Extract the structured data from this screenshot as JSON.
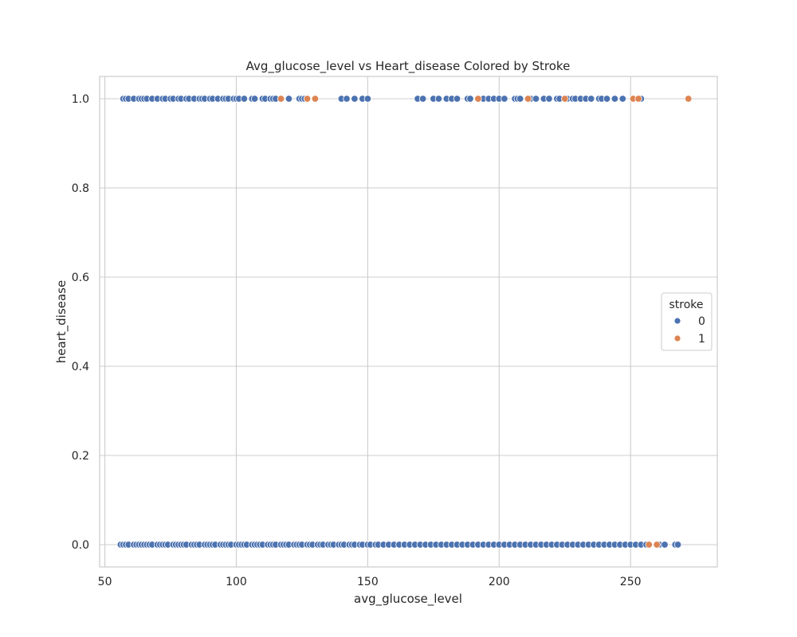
{
  "chart_data": {
    "type": "scatter",
    "title": "Avg_glucose_level vs Heart_disease Colored by Stroke",
    "xlabel": "avg_glucose_level",
    "ylabel": "heart_disease",
    "xlim": [
      48,
      283
    ],
    "ylim": [
      -0.05,
      1.05
    ],
    "xticks": [
      50,
      100,
      150,
      200,
      250
    ],
    "yticks": [
      0.0,
      0.2,
      0.4,
      0.6,
      0.8,
      1.0
    ],
    "xtick_labels": [
      "50",
      "100",
      "150",
      "200",
      "250"
    ],
    "ytick_labels": [
      "0.0",
      "0.2",
      "0.4",
      "0.6",
      "0.8",
      "1.0"
    ],
    "grid": true,
    "legend": {
      "title": "stroke",
      "placement": "center-right",
      "entries": [
        "0",
        "1"
      ]
    },
    "colors": {
      "0": "#4c72b0",
      "1": "#dd8452"
    },
    "series": [
      {
        "name": "0",
        "points": [
          [
            57,
            1
          ],
          [
            58,
            1
          ],
          [
            59,
            1
          ],
          [
            61,
            1
          ],
          [
            63,
            1
          ],
          [
            64,
            1
          ],
          [
            65,
            1
          ],
          [
            66,
            1
          ],
          [
            68,
            1
          ],
          [
            70,
            1
          ],
          [
            72,
            1
          ],
          [
            73,
            1
          ],
          [
            75,
            1
          ],
          [
            76,
            1
          ],
          [
            78,
            1
          ],
          [
            79,
            1
          ],
          [
            81,
            1
          ],
          [
            82,
            1
          ],
          [
            84,
            1
          ],
          [
            86,
            1
          ],
          [
            87,
            1
          ],
          [
            88,
            1
          ],
          [
            90,
            1
          ],
          [
            91,
            1
          ],
          [
            93,
            1
          ],
          [
            95,
            1
          ],
          [
            96,
            1
          ],
          [
            97,
            1
          ],
          [
            99,
            1
          ],
          [
            100,
            1
          ],
          [
            101,
            1
          ],
          [
            103,
            1
          ],
          [
            106,
            1
          ],
          [
            107,
            1
          ],
          [
            110,
            1
          ],
          [
            111,
            1
          ],
          [
            113,
            1
          ],
          [
            114,
            1
          ],
          [
            115,
            1
          ],
          [
            120,
            1
          ],
          [
            124,
            1
          ],
          [
            125,
            1
          ],
          [
            126,
            1
          ],
          [
            127,
            1
          ],
          [
            140,
            1
          ],
          [
            142,
            1
          ],
          [
            145,
            1
          ],
          [
            148,
            1
          ],
          [
            150,
            1
          ],
          [
            169,
            1
          ],
          [
            171,
            1
          ],
          [
            175,
            1
          ],
          [
            177,
            1
          ],
          [
            180,
            1
          ],
          [
            182,
            1
          ],
          [
            184,
            1
          ],
          [
            188,
            1
          ],
          [
            189,
            1
          ],
          [
            194,
            1
          ],
          [
            196,
            1
          ],
          [
            198,
            1
          ],
          [
            200,
            1
          ],
          [
            202,
            1
          ],
          [
            206,
            1
          ],
          [
            207,
            1
          ],
          [
            208,
            1
          ],
          [
            212,
            1
          ],
          [
            214,
            1
          ],
          [
            217,
            1
          ],
          [
            219,
            1
          ],
          [
            222,
            1
          ],
          [
            223,
            1
          ],
          [
            226,
            1
          ],
          [
            228,
            1
          ],
          [
            229,
            1
          ],
          [
            231,
            1
          ],
          [
            233,
            1
          ],
          [
            235,
            1
          ],
          [
            238,
            1
          ],
          [
            239,
            1
          ],
          [
            241,
            1
          ],
          [
            244,
            1
          ],
          [
            247,
            1
          ],
          [
            254,
            1
          ],
          [
            56,
            0
          ],
          [
            57,
            0
          ],
          [
            58,
            0
          ],
          [
            59,
            0
          ],
          [
            61,
            0
          ],
          [
            62,
            0
          ],
          [
            63,
            0
          ],
          [
            64,
            0
          ],
          [
            65,
            0
          ],
          [
            66,
            0
          ],
          [
            67,
            0
          ],
          [
            68,
            0
          ],
          [
            70,
            0
          ],
          [
            71,
            0
          ],
          [
            72,
            0
          ],
          [
            73,
            0
          ],
          [
            74,
            0
          ],
          [
            76,
            0
          ],
          [
            77,
            0
          ],
          [
            78,
            0
          ],
          [
            79,
            0
          ],
          [
            80,
            0
          ],
          [
            81,
            0
          ],
          [
            83,
            0
          ],
          [
            84,
            0
          ],
          [
            85,
            0
          ],
          [
            86,
            0
          ],
          [
            88,
            0
          ],
          [
            89,
            0
          ],
          [
            90,
            0
          ],
          [
            91,
            0
          ],
          [
            92,
            0
          ],
          [
            94,
            0
          ],
          [
            95,
            0
          ],
          [
            96,
            0
          ],
          [
            97,
            0
          ],
          [
            98,
            0
          ],
          [
            100,
            0
          ],
          [
            101,
            0
          ],
          [
            102,
            0
          ],
          [
            103,
            0
          ],
          [
            104,
            0
          ],
          [
            106,
            0
          ],
          [
            107,
            0
          ],
          [
            108,
            0
          ],
          [
            109,
            0
          ],
          [
            110,
            0
          ],
          [
            112,
            0
          ],
          [
            113,
            0
          ],
          [
            114,
            0
          ],
          [
            115,
            0
          ],
          [
            117,
            0
          ],
          [
            118,
            0
          ],
          [
            119,
            0
          ],
          [
            120,
            0
          ],
          [
            122,
            0
          ],
          [
            123,
            0
          ],
          [
            124,
            0
          ],
          [
            125,
            0
          ],
          [
            127,
            0
          ],
          [
            128,
            0
          ],
          [
            129,
            0
          ],
          [
            131,
            0
          ],
          [
            132,
            0
          ],
          [
            133,
            0
          ],
          [
            135,
            0
          ],
          [
            136,
            0
          ],
          [
            137,
            0
          ],
          [
            139,
            0
          ],
          [
            140,
            0
          ],
          [
            141,
            0
          ],
          [
            143,
            0
          ],
          [
            144,
            0
          ],
          [
            145,
            0
          ],
          [
            147,
            0
          ],
          [
            148,
            0
          ],
          [
            150,
            0
          ],
          [
            151,
            0
          ],
          [
            153,
            0
          ],
          [
            154,
            0
          ],
          [
            156,
            0
          ],
          [
            158,
            0
          ],
          [
            160,
            0
          ],
          [
            162,
            0
          ],
          [
            164,
            0
          ],
          [
            166,
            0
          ],
          [
            168,
            0
          ],
          [
            170,
            0
          ],
          [
            172,
            0
          ],
          [
            174,
            0
          ],
          [
            176,
            0
          ],
          [
            178,
            0
          ],
          [
            180,
            0
          ],
          [
            182,
            0
          ],
          [
            184,
            0
          ],
          [
            186,
            0
          ],
          [
            188,
            0
          ],
          [
            190,
            0
          ],
          [
            192,
            0
          ],
          [
            194,
            0
          ],
          [
            196,
            0
          ],
          [
            198,
            0
          ],
          [
            200,
            0
          ],
          [
            202,
            0
          ],
          [
            204,
            0
          ],
          [
            206,
            0
          ],
          [
            208,
            0
          ],
          [
            210,
            0
          ],
          [
            212,
            0
          ],
          [
            214,
            0
          ],
          [
            216,
            0
          ],
          [
            218,
            0
          ],
          [
            220,
            0
          ],
          [
            222,
            0
          ],
          [
            224,
            0
          ],
          [
            226,
            0
          ],
          [
            228,
            0
          ],
          [
            230,
            0
          ],
          [
            232,
            0
          ],
          [
            234,
            0
          ],
          [
            236,
            0
          ],
          [
            238,
            0
          ],
          [
            240,
            0
          ],
          [
            242,
            0
          ],
          [
            244,
            0
          ],
          [
            246,
            0
          ],
          [
            248,
            0
          ],
          [
            250,
            0
          ],
          [
            252,
            0
          ],
          [
            254,
            0
          ],
          [
            256,
            0
          ],
          [
            261,
            0
          ],
          [
            263,
            0
          ],
          [
            267,
            0
          ],
          [
            268,
            0
          ]
        ]
      },
      {
        "name": "1",
        "points": [
          [
            117,
            1
          ],
          [
            127,
            1
          ],
          [
            130,
            1
          ],
          [
            192,
            1
          ],
          [
            211,
            1
          ],
          [
            225,
            1
          ],
          [
            251,
            1
          ],
          [
            253,
            1
          ],
          [
            272,
            1
          ],
          [
            257,
            0
          ],
          [
            260,
            0
          ]
        ]
      }
    ]
  }
}
